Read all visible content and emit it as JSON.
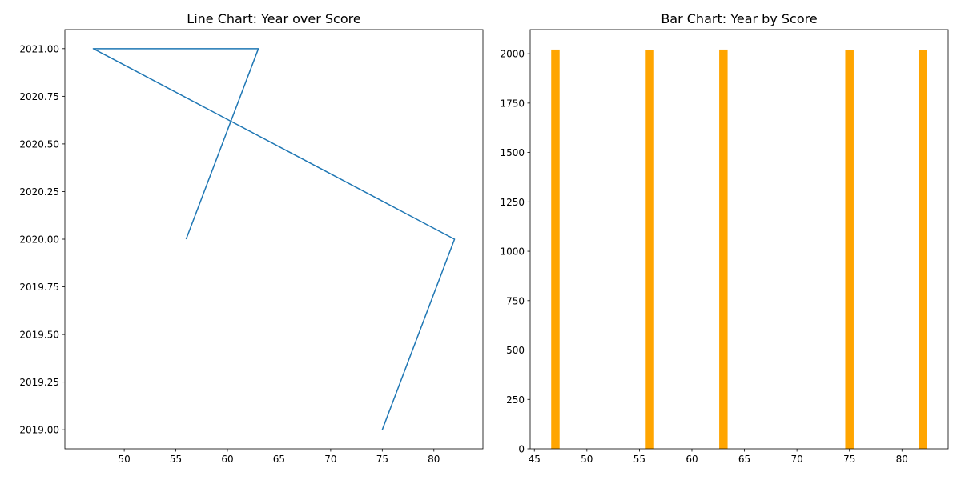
{
  "chart_data": [
    {
      "type": "line",
      "title": "Line Chart: Year over Score",
      "xlabel": "",
      "ylabel": "",
      "x": [
        75,
        82,
        47,
        63,
        56
      ],
      "y": [
        2019,
        2020,
        2021,
        2021,
        2020
      ],
      "xlim": [
        44.25,
        84.75
      ],
      "ylim": [
        2018.9,
        2021.1
      ],
      "xticks": [
        "50",
        "55",
        "60",
        "65",
        "70",
        "75",
        "80"
      ],
      "yticks": [
        "2019.00",
        "2019.25",
        "2019.50",
        "2019.75",
        "2020.00",
        "2020.25",
        "2020.50",
        "2020.75",
        "2021.00"
      ],
      "grid": false,
      "color": "#1f77b4"
    },
    {
      "type": "bar",
      "title": "Bar Chart: Year by Score",
      "xlabel": "",
      "ylabel": "",
      "x": [
        47,
        56,
        63,
        75,
        82
      ],
      "values": [
        2021,
        2020,
        2021,
        2019,
        2020
      ],
      "xlim": [
        44.6,
        84.4
      ],
      "ylim": [
        0,
        2122
      ],
      "xticks": [
        "45",
        "50",
        "55",
        "60",
        "65",
        "70",
        "75",
        "80"
      ],
      "yticks": [
        "0",
        "250",
        "500",
        "750",
        "1000",
        "1250",
        "1500",
        "1750",
        "2000"
      ],
      "grid": false,
      "color": "#ffa500"
    }
  ]
}
